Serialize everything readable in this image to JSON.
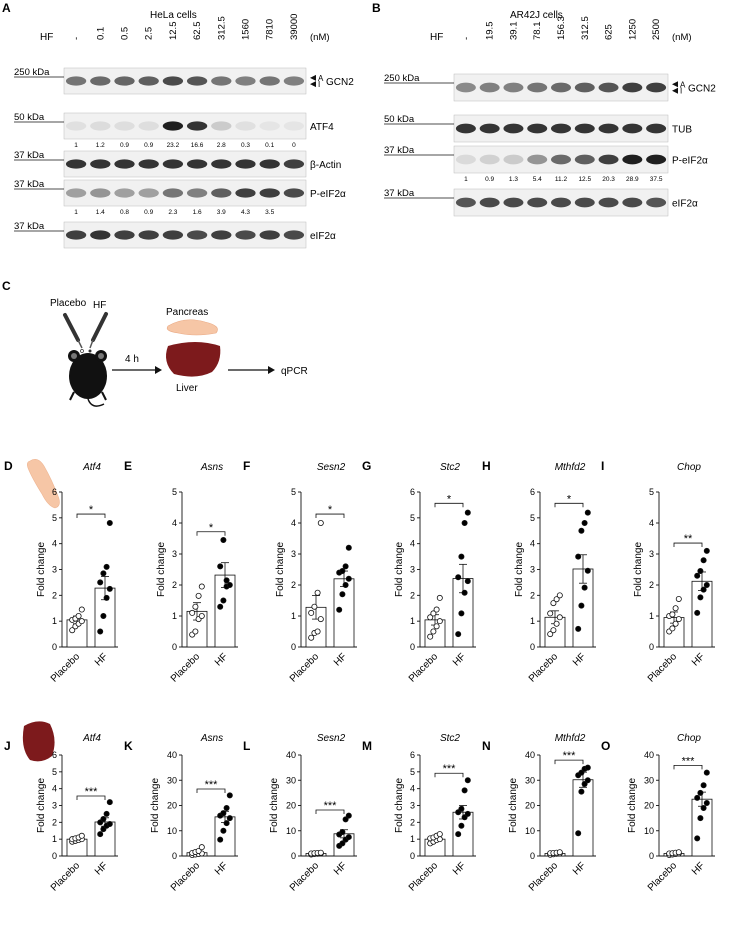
{
  "panel_letters": [
    "A",
    "B",
    "C",
    "D",
    "E",
    "F",
    "G",
    "H",
    "I",
    "J",
    "K",
    "L",
    "M",
    "N",
    "O"
  ],
  "hela": {
    "title": "HeLa cells",
    "hf_label": "HF",
    "unit": "(nM)",
    "concentrations": [
      "-",
      "0.1",
      "0.5",
      "2.5",
      "12.5",
      "62.5",
      "312.5",
      "1560",
      "7810",
      "39000"
    ],
    "blots": [
      {
        "marker": "250 kDa",
        "name": "GCN2",
        "arrows": [
          "A",
          "I"
        ],
        "intensity": [
          0.55,
          0.6,
          0.62,
          0.65,
          0.75,
          0.7,
          0.55,
          0.5,
          0.55,
          0.5
        ]
      },
      {
        "marker": "50 kDa",
        "name": "ATF4",
        "intensity": [
          0.05,
          0.07,
          0.06,
          0.06,
          0.95,
          0.85,
          0.15,
          0.05,
          0.03,
          0.03
        ],
        "quant": [
          "1",
          "1.2",
          "0.9",
          "0.9",
          "23.2",
          "16.6",
          "2.8",
          "0.3",
          "0.1",
          "0"
        ]
      },
      {
        "marker": "37 kDa",
        "name": "β-Actin",
        "intensity": [
          0.85,
          0.85,
          0.85,
          0.85,
          0.85,
          0.85,
          0.85,
          0.85,
          0.85,
          0.8
        ]
      },
      {
        "marker": "37 kDa",
        "name": "P-eIF2α",
        "intensity": [
          0.35,
          0.4,
          0.35,
          0.35,
          0.55,
          0.5,
          0.65,
          0.8,
          0.8,
          0.75
        ],
        "quant": [
          "1",
          "1.4",
          "0.8",
          "0.9",
          "2.3",
          "1.6",
          "3.9",
          "4.3",
          "3.5",
          ""
        ]
      },
      {
        "marker": "37 kDa",
        "name": "eIF2α",
        "intensity": [
          0.8,
          0.85,
          0.8,
          0.8,
          0.8,
          0.75,
          0.8,
          0.75,
          0.8,
          0.75
        ]
      }
    ]
  },
  "ar42j": {
    "title": "AR42J cells",
    "hf_label": "HF",
    "unit": "(nM)",
    "concentrations": [
      "-",
      "19.5",
      "39.1",
      "78.1",
      "156.3",
      "312.5",
      "625",
      "1250",
      "2500"
    ],
    "blots": [
      {
        "marker": "250 kDa",
        "name": "GCN2",
        "arrows": [
          "A",
          "I"
        ],
        "intensity": [
          0.45,
          0.5,
          0.5,
          0.55,
          0.6,
          0.65,
          0.7,
          0.8,
          0.8
        ]
      },
      {
        "marker": "50 kDa",
        "name": "TUB",
        "intensity": [
          0.85,
          0.85,
          0.85,
          0.85,
          0.85,
          0.85,
          0.85,
          0.85,
          0.85
        ]
      },
      {
        "marker": "37 kDa",
        "name": "P-eIF2α",
        "intensity": [
          0.08,
          0.12,
          0.15,
          0.4,
          0.6,
          0.65,
          0.8,
          0.95,
          0.95
        ],
        "quant": [
          "1",
          "0.9",
          "1.3",
          "5.4",
          "11.2",
          "12.5",
          "20.3",
          "28.9",
          "37.5"
        ]
      },
      {
        "marker": "37 kDa",
        "name": "eIF2α",
        "intensity": [
          0.7,
          0.75,
          0.75,
          0.75,
          0.75,
          0.75,
          0.75,
          0.75,
          0.7
        ]
      }
    ]
  },
  "schematic": {
    "placebo": "Placebo",
    "hf": "HF",
    "time": "4 h",
    "pancreas": "Pancreas",
    "liver": "Liver",
    "readout": "qPCR"
  },
  "colors": {
    "pancreas": "#f6c6a6",
    "liver": "#7d1a1c",
    "open_point": "#ffffff",
    "filled_point": "#000000"
  },
  "chart_data": [
    {
      "type": "bar",
      "panel": "D",
      "title": "Atf4",
      "ylabel": "Fold change",
      "categories": [
        "Placebo",
        "HF"
      ],
      "ylim": [
        0,
        6
      ],
      "yticks": [
        0,
        1,
        2,
        3,
        4,
        5,
        6
      ],
      "means": [
        1.05,
        2.28
      ],
      "sem": [
        0.15,
        0.45
      ],
      "significance": "*",
      "points": [
        [
          0.65,
          0.8,
          0.9,
          1.0,
          1.05,
          1.1,
          1.2,
          1.45
        ],
        [
          0.6,
          1.2,
          1.9,
          2.25,
          2.5,
          2.85,
          3.1,
          4.8
        ]
      ]
    },
    {
      "type": "bar",
      "panel": "E",
      "title": "Asns",
      "ylabel": "Fold change",
      "categories": [
        "Placebo",
        "HF"
      ],
      "ylim": [
        0,
        5
      ],
      "yticks": [
        0,
        1,
        2,
        3,
        4,
        5
      ],
      "means": [
        1.15,
        2.32
      ],
      "sem": [
        0.28,
        0.4
      ],
      "significance": "*",
      "points": [
        [
          0.4,
          0.5,
          0.9,
          1.0,
          1.1,
          1.3,
          1.65,
          1.95
        ],
        [
          1.3,
          1.5,
          1.95,
          2.0,
          2.6,
          3.45,
          2.15
        ]
      ]
    },
    {
      "type": "bar",
      "panel": "F",
      "title": "Sesn2",
      "ylabel": "Fold change",
      "categories": [
        "Placebo",
        "HF"
      ],
      "ylim": [
        0,
        5
      ],
      "yticks": [
        0,
        1,
        2,
        3,
        4,
        5
      ],
      "means": [
        1.28,
        2.2
      ],
      "sem": [
        0.38,
        0.25
      ],
      "significance": "*",
      "points": [
        [
          0.3,
          0.45,
          0.5,
          0.9,
          1.1,
          1.3,
          1.75,
          4.0
        ],
        [
          1.2,
          1.7,
          2.0,
          2.2,
          2.4,
          2.45,
          2.6,
          3.2
        ]
      ]
    },
    {
      "type": "bar",
      "panel": "G",
      "title": "Stc2",
      "ylabel": "Fold change",
      "categories": [
        "Placebo",
        "HF"
      ],
      "ylim": [
        0,
        6
      ],
      "yticks": [
        0,
        1,
        2,
        3,
        4,
        5,
        6
      ],
      "means": [
        1.05,
        2.65
      ],
      "sem": [
        0.2,
        0.55
      ],
      "significance": "*",
      "points": [
        [
          0.4,
          0.6,
          0.8,
          1.0,
          1.15,
          1.3,
          1.45,
          1.9
        ],
        [
          0.5,
          1.3,
          2.1,
          2.55,
          2.7,
          3.5,
          4.8,
          5.2
        ]
      ]
    },
    {
      "type": "bar",
      "panel": "H",
      "title": "Mthfd2",
      "ylabel": "Fold change",
      "categories": [
        "Placebo",
        "HF"
      ],
      "ylim": [
        0,
        6
      ],
      "yticks": [
        0,
        1,
        2,
        3,
        4,
        5,
        6
      ],
      "means": [
        1.15,
        3.02
      ],
      "sem": [
        0.25,
        0.55
      ],
      "significance": "*",
      "points": [
        [
          0.5,
          0.65,
          0.9,
          1.15,
          1.3,
          1.7,
          1.85,
          2.0
        ],
        [
          0.7,
          1.6,
          2.3,
          2.95,
          3.5,
          4.5,
          4.8,
          5.2
        ]
      ]
    },
    {
      "type": "bar",
      "panel": "I",
      "title": "Chop",
      "ylabel": "Fold change",
      "categories": [
        "Placebo",
        "HF"
      ],
      "ylim": [
        0,
        5
      ],
      "yticks": [
        0,
        1,
        2,
        3,
        4,
        5
      ],
      "means": [
        0.95,
        2.12
      ],
      "sem": [
        0.18,
        0.3
      ],
      "significance": "**",
      "points": [
        [
          0.5,
          0.6,
          0.75,
          0.9,
          1.0,
          1.05,
          1.25,
          1.55
        ],
        [
          1.1,
          1.6,
          1.85,
          2.0,
          2.3,
          2.45,
          2.8,
          3.1
        ]
      ]
    },
    {
      "type": "bar",
      "panel": "J",
      "title": "Atf4",
      "ylabel": "Fold change",
      "categories": [
        "Placebo",
        "HF"
      ],
      "ylim": [
        0,
        6
      ],
      "yticks": [
        0,
        1,
        2,
        3,
        4,
        5,
        6
      ],
      "means": [
        1.0,
        2.02
      ],
      "sem": [
        0.06,
        0.25
      ],
      "significance": "***",
      "points": [
        [
          0.85,
          0.9,
          0.95,
          1.0,
          1.0,
          1.05,
          1.1,
          1.2
        ],
        [
          1.3,
          1.6,
          1.8,
          1.9,
          2.0,
          2.2,
          2.5,
          3.2
        ]
      ]
    },
    {
      "type": "bar",
      "panel": "K",
      "title": "Asns",
      "ylabel": "Fold change",
      "categories": [
        "Placebo",
        "HF"
      ],
      "ylim": [
        0,
        40
      ],
      "yticks": [
        0,
        10,
        20,
        30,
        40
      ],
      "means": [
        1.3,
        15.5
      ],
      "sem": [
        0.4,
        2.2
      ],
      "significance": "***",
      "points": [
        [
          0.4,
          0.6,
          0.8,
          1.0,
          1.2,
          1.6,
          2.0,
          3.5
        ],
        [
          6.5,
          10,
          13,
          15,
          16,
          17,
          19,
          24
        ]
      ]
    },
    {
      "type": "bar",
      "panel": "L",
      "title": "Sesn2",
      "ylabel": "Fold change",
      "categories": [
        "Placebo",
        "HF"
      ],
      "ylim": [
        0,
        40
      ],
      "yticks": [
        0,
        10,
        20,
        30,
        40
      ],
      "means": [
        1.0,
        8.8
      ],
      "sem": [
        0.1,
        1.6
      ],
      "significance": "***",
      "points": [
        [
          0.6,
          0.8,
          0.9,
          1.0,
          1.0,
          1.1,
          1.2,
          1.3
        ],
        [
          4.0,
          5.0,
          6.5,
          7.5,
          8.5,
          9.5,
          14.5,
          16
        ]
      ]
    },
    {
      "type": "bar",
      "panel": "M",
      "title": "Stc2",
      "ylabel": "Fold change",
      "categories": [
        "Placebo",
        "HF"
      ],
      "ylim": [
        0,
        6
      ],
      "yticks": [
        0,
        1,
        2,
        3,
        4,
        5,
        6
      ],
      "means": [
        1.0,
        2.6
      ],
      "sem": [
        0.08,
        0.4
      ],
      "significance": "***",
      "points": [
        [
          0.75,
          0.85,
          0.95,
          1.0,
          1.05,
          1.1,
          1.2,
          1.3
        ],
        [
          1.3,
          1.8,
          2.3,
          2.5,
          2.6,
          2.8,
          3.9,
          4.5
        ]
      ]
    },
    {
      "type": "bar",
      "panel": "N",
      "title": "Mthfd2",
      "ylabel": "Fold change",
      "categories": [
        "Placebo",
        "HF"
      ],
      "ylim": [
        0,
        40
      ],
      "yticks": [
        0,
        10,
        20,
        30,
        40
      ],
      "means": [
        1.0,
        30.2
      ],
      "sem": [
        0.15,
        3.0
      ],
      "significance": "***",
      "points": [
        [
          0.5,
          0.7,
          0.9,
          1.0,
          1.1,
          1.2,
          1.3,
          1.5
        ],
        [
          9,
          25.5,
          28.5,
          30,
          32,
          33,
          34.5,
          35
        ]
      ]
    },
    {
      "type": "bar",
      "panel": "O",
      "title": "Chop",
      "ylabel": "Fold change",
      "categories": [
        "Placebo",
        "HF"
      ],
      "ylim": [
        0,
        40
      ],
      "yticks": [
        0,
        10,
        20,
        30,
        40
      ],
      "means": [
        1.0,
        22.5
      ],
      "sem": [
        0.2,
        2.8
      ],
      "significance": "***",
      "points": [
        [
          0.4,
          0.6,
          0.8,
          1.0,
          1.0,
          1.1,
          1.3,
          1.5
        ],
        [
          7,
          15,
          19,
          21,
          23,
          25,
          28,
          33
        ]
      ]
    }
  ]
}
